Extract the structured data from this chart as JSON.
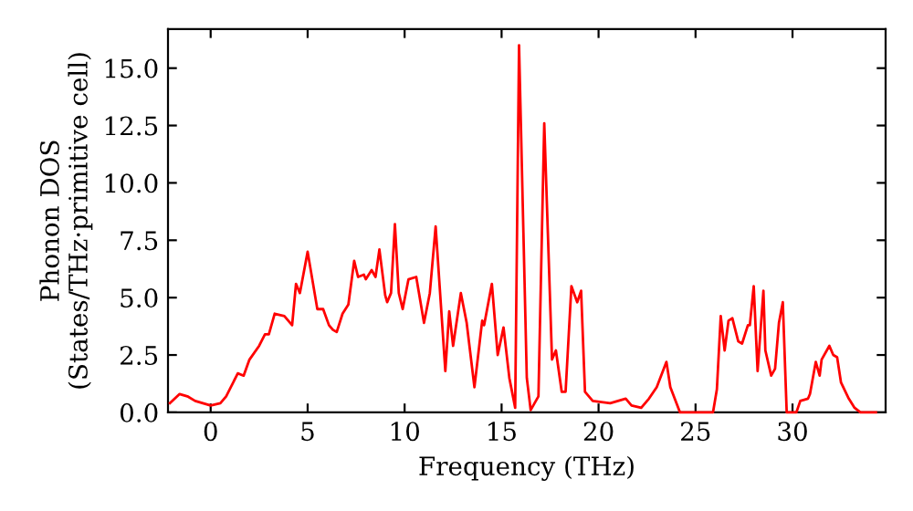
{
  "chart_data": {
    "type": "line",
    "xlabel": "Frequency (THz)",
    "ylabel": "Phonon DOS\n(States/THz·primitive cell)",
    "xlim": [
      -2.2,
      34.8
    ],
    "ylim": [
      0,
      16.7
    ],
    "xticks": [
      0,
      5,
      10,
      15,
      20,
      25,
      30
    ],
    "yticks": [
      {
        "value": 0,
        "label": "0.0"
      },
      {
        "value": 2.5,
        "label": "2.5"
      },
      {
        "value": 5,
        "label": "5.0"
      },
      {
        "value": 7.5,
        "label": "7.5"
      },
      {
        "value": 10,
        "label": "10.0"
      },
      {
        "value": 12.5,
        "label": "12.5"
      },
      {
        "value": 15,
        "label": "15.0"
      }
    ],
    "grid": false,
    "legend": false,
    "marker": "none",
    "line_style": "solid",
    "series": [
      {
        "color": "#ff0000",
        "x": [
          -2.1,
          -1.6,
          -1.2,
          -0.8,
          0,
          0.5,
          0.8,
          1.4,
          1.7,
          2.0,
          2.5,
          2.8,
          3.0,
          3.3,
          3.8,
          4.2,
          4.4,
          4.6,
          5.0,
          5.5,
          5.8,
          6.1,
          6.3,
          6.5,
          6.8,
          7.1,
          7.4,
          7.6,
          7.9,
          8.0,
          8.3,
          8.5,
          8.7,
          9.0,
          9.1,
          9.3,
          9.5,
          9.7,
          9.9,
          10.2,
          10.6,
          11.0,
          11.3,
          11.6,
          12.1,
          12.3,
          12.5,
          12.9,
          13.2,
          13.6,
          14.0,
          14.1,
          14.5,
          14.8,
          15.1,
          15.4,
          15.7,
          15.9,
          16.3,
          16.5,
          16.9,
          17.2,
          17.6,
          17.8,
          18.1,
          18.3,
          18.6,
          18.9,
          19.1,
          19.3,
          19.7,
          20.6,
          21.4,
          21.7,
          22.2,
          22.6,
          23.0,
          23.5,
          23.7,
          24.2,
          25.9,
          26.1,
          26.3,
          26.5,
          26.7,
          26.9,
          27.2,
          27.4,
          27.7,
          27.8,
          28.0,
          28.2,
          28.5,
          28.6,
          28.9,
          29.1,
          29.3,
          29.5,
          29.7,
          30.2,
          30.4,
          30.8,
          30.9,
          31.2,
          31.4,
          31.5,
          31.9,
          32.1,
          32.3,
          32.5,
          32.9,
          33.2,
          33.5,
          34.3
        ],
        "values": [
          0.4,
          0.8,
          0.7,
          0.5,
          0.3,
          0.4,
          0.7,
          1.7,
          1.6,
          2.3,
          2.9,
          3.4,
          3.4,
          4.3,
          4.2,
          3.8,
          5.6,
          5.2,
          7.0,
          4.5,
          4.5,
          3.8,
          3.6,
          3.5,
          4.3,
          4.7,
          6.6,
          5.9,
          6.0,
          5.8,
          6.2,
          5.9,
          7.1,
          5.1,
          4.8,
          5.2,
          8.2,
          5.2,
          4.5,
          5.8,
          5.9,
          3.9,
          5.2,
          8.1,
          1.8,
          4.4,
          2.9,
          5.2,
          3.9,
          1.1,
          4.0,
          3.8,
          5.6,
          2.5,
          3.7,
          1.5,
          0.2,
          16.0,
          1.5,
          0.1,
          0.7,
          12.6,
          2.3,
          2.7,
          0.9,
          0.9,
          5.5,
          4.8,
          5.3,
          0.9,
          0.5,
          0.4,
          0.6,
          0.3,
          0.2,
          0.6,
          1.1,
          2.2,
          1.1,
          0,
          0,
          1.0,
          4.2,
          2.7,
          4.0,
          4.1,
          3.1,
          3.0,
          3.8,
          3.8,
          5.5,
          1.8,
          5.3,
          2.7,
          1.6,
          1.9,
          3.9,
          4.8,
          0,
          0,
          0.5,
          0.6,
          0.8,
          2.2,
          1.6,
          2.3,
          2.9,
          2.5,
          2.4,
          1.3,
          0.6,
          0.2,
          0,
          0
        ]
      }
    ]
  }
}
